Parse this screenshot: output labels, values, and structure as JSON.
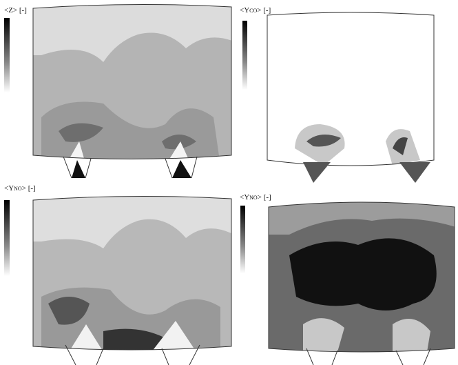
{
  "panels": [
    {
      "prefix": "<Z>",
      "subscript": "",
      "suffix": "",
      "unit": "[-]"
    },
    {
      "prefix": "<Y",
      "subscript": "CO",
      "suffix": ">",
      "unit": "[-]"
    },
    {
      "prefix": "<Y",
      "subscript": "NO",
      "suffix": ">",
      "unit": "[-]"
    },
    {
      "prefix": "<Y",
      "subscript": "NO",
      "suffix": ">",
      "unit": "[-]"
    }
  ]
}
